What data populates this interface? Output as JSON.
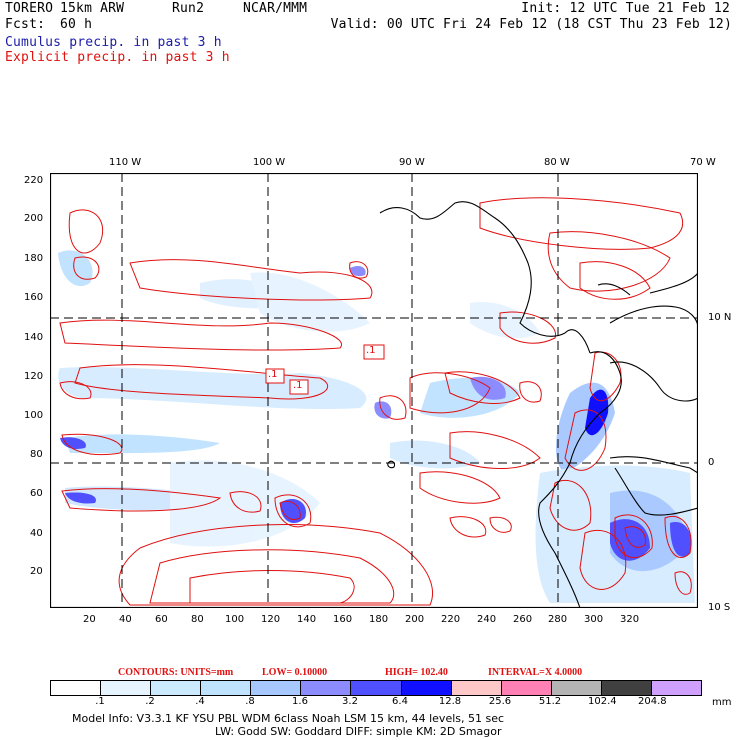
{
  "header": {
    "model": "TORERO",
    "grid": "15km ARW",
    "run": "Run2",
    "org": "NCAR/MMM",
    "init": "Init: 12 UTC Tue 21 Feb 12",
    "fcst_label": "Fcst:",
    "fcst_value": "60 h",
    "valid": "Valid: 00 UTC Fri 24 Feb 12 (18 CST Thu 23 Feb 12)",
    "cumulus": "Cumulus precip. in past 3 h",
    "explicit": "Explicit precip. in past 3 h"
  },
  "map": {
    "lon_labels": [
      "110 W",
      "100 W",
      "90 W",
      "80 W",
      "70 W"
    ],
    "lat_labels": [
      "10 N",
      "0",
      "10 S"
    ],
    "y_ticks": [
      "220",
      "200",
      "180",
      "160",
      "140",
      "120",
      "100",
      "80",
      "60",
      "40",
      "20"
    ],
    "x_ticks": [
      "20",
      "40",
      "60",
      "80",
      "100",
      "120",
      "140",
      "160",
      "180",
      "200",
      "220",
      "240",
      "260",
      "280",
      "300",
      "320"
    ],
    "contour_labels": [
      ".1",
      ".1",
      ".1"
    ],
    "colors": {
      "contour": "#e01010",
      "frame": "#000000",
      "grid": "#000000"
    }
  },
  "contours_info": {
    "units": "CONTOURS:  UNITS=mm",
    "low": "LOW= 0.10000",
    "high": "HIGH=  102.40",
    "interval": "INTERVAL=X  4.0000"
  },
  "colorbar": {
    "labels": [
      ".1",
      ".2",
      ".4",
      ".8",
      "1.6",
      "3.2",
      "6.4",
      "12.8",
      "25.6",
      "51.2",
      "102.4",
      "204.8"
    ],
    "unit": "mm",
    "colors": [
      "#ffffff",
      "#e6f4ff",
      "#cceaff",
      "#bfe2ff",
      "#a6c8ff",
      "#8c8cff",
      "#5050ff",
      "#1010ff",
      "#ffc8c8",
      "#ff80b4",
      "#b4b4b4",
      "#404040",
      "#d0a0ff"
    ]
  },
  "footer": {
    "line1": "Model Info: V3.3.1    KF     YSU PBL   WDM 6class  Noah LSM  15 km,    44 levels,    51 sec",
    "line2": "LW: Godd SW: Goddard DIFF: simple KM: 2D Smagor"
  }
}
